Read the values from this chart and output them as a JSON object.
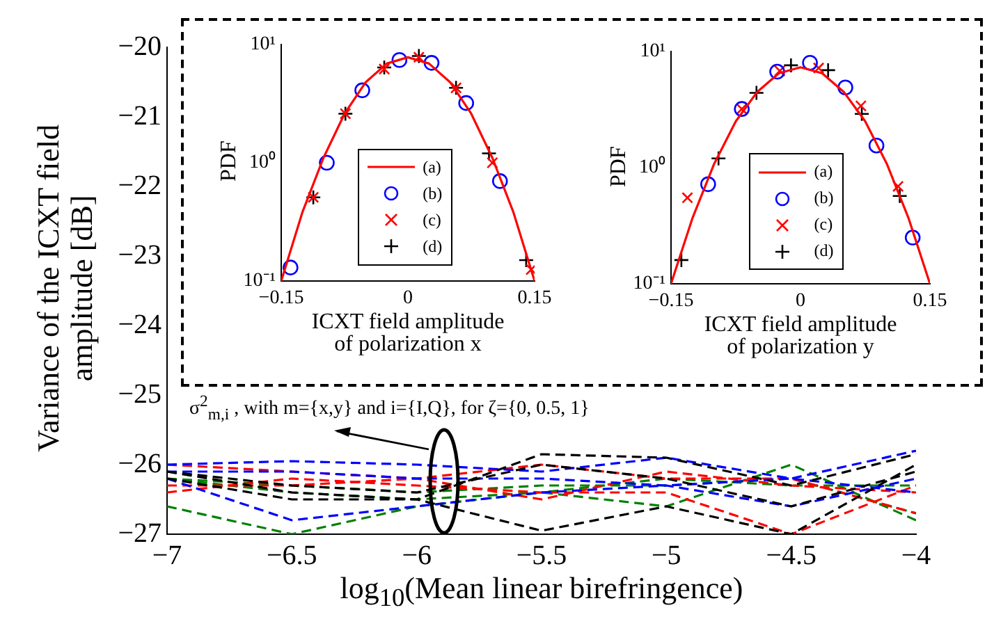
{
  "chart_data": [
    {
      "type": "line",
      "xlabel": "log$_{10}$(Mean linear birefringence)",
      "ylabel": "Variance of the ICXT field amplitude [dB]",
      "x": [
        -7,
        -6.5,
        -6,
        -5.5,
        -5,
        -4.5,
        -4
      ],
      "xlim": [
        -7,
        -4
      ],
      "xticks": [
        -7,
        -6.5,
        -6,
        -5.5,
        -5,
        -4.5,
        -4
      ],
      "ylim": [
        -27,
        -20
      ],
      "yticks": [
        -27,
        -26,
        -25,
        -24,
        -23,
        -22,
        -21,
        -20
      ],
      "legend": false,
      "marker": "none",
      "line_style": "dashed",
      "annotations": [
        "σ$^{2}$$_{m,i}$ , with m={x,y} and i={I,Q}, for ζ={0, 0.5, 1}"
      ],
      "series": [
        {
          "color": "#000000",
          "values": [
            -26.1,
            -26.4,
            -26.5,
            -25.85,
            -25.9,
            -26.3,
            -25.85
          ]
        },
        {
          "color": "#000000",
          "values": [
            -26.2,
            -26.5,
            -26.5,
            -26.95,
            -26.6,
            -27.0,
            -26.0
          ]
        },
        {
          "color": "#000000",
          "values": [
            -26.1,
            -26.3,
            -26.4,
            -26.0,
            -26.2,
            -26.6,
            -26.1
          ]
        },
        {
          "color": "#0000ff",
          "values": [
            -26.0,
            -25.95,
            -26.0,
            -26.1,
            -25.9,
            -26.2,
            -25.8
          ]
        },
        {
          "color": "#0000ff",
          "values": [
            -26.2,
            -26.8,
            -26.6,
            -26.4,
            -26.3,
            -26.6,
            -26.2
          ]
        },
        {
          "color": "#0000ff",
          "values": [
            -26.1,
            -26.1,
            -26.2,
            -26.2,
            -26.3,
            -26.2,
            -26.4
          ]
        },
        {
          "color": "#ff0000",
          "values": [
            -26.0,
            -26.1,
            -26.2,
            -26.0,
            -26.2,
            -26.2,
            -26.7
          ]
        },
        {
          "color": "#ff0000",
          "values": [
            -26.4,
            -26.2,
            -26.3,
            -26.4,
            -26.4,
            -27.0,
            -26.3
          ]
        },
        {
          "color": "#ff0000",
          "values": [
            -26.3,
            -26.3,
            -26.2,
            -26.5,
            -26.1,
            -26.3,
            -26.4
          ]
        },
        {
          "color": "#008000",
          "values": [
            -26.6,
            -27.0,
            -26.6,
            -26.4,
            -26.6,
            -26.0,
            -26.8
          ]
        },
        {
          "color": "#008000",
          "values": [
            -26.2,
            -26.3,
            -26.4,
            -26.3,
            -26.3,
            -26.2,
            -26.7
          ]
        },
        {
          "color": "#008000",
          "values": [
            -26.2,
            -26.4,
            -26.5,
            -26.4,
            -26.2,
            -26.3,
            -26.3
          ]
        }
      ]
    },
    {
      "type": "scatter",
      "xlabel": "ICXT field amplitude\nof polarization x",
      "ylabel": "PDF",
      "log": "y",
      "legend": "right",
      "xlim": [
        -0.15,
        0.15
      ],
      "xticks": [
        -0.15,
        0,
        0.15
      ],
      "ylim": [
        0.1,
        10
      ],
      "yticks": [
        {
          "value": 0.1,
          "label": "10⁻¹"
        },
        {
          "value": 1,
          "label": "10⁰"
        },
        {
          "value": 10,
          "label": "10¹"
        }
      ],
      "series": [
        {
          "name": "(a)",
          "type": "line",
          "color": "#ff0000",
          "marker": "none",
          "x": [
            -0.15,
            -0.125,
            -0.1,
            -0.075,
            -0.05,
            -0.025,
            0,
            0.025,
            0.05,
            0.075,
            0.1,
            0.125,
            0.15
          ],
          "values": [
            0.1,
            0.38,
            1.1,
            2.6,
            4.8,
            6.9,
            7.8,
            6.9,
            4.8,
            2.6,
            1.1,
            0.38,
            0.1
          ]
        },
        {
          "name": "(b)",
          "type": "scatter",
          "color": "#0000ff",
          "marker": "circle",
          "x": [
            -0.139,
            -0.096,
            -0.054,
            -0.01,
            0.028,
            0.069,
            0.109
          ],
          "values": [
            0.13,
            1.0,
            4.1,
            7.4,
            7.0,
            3.2,
            0.7
          ]
        },
        {
          "name": "(c)",
          "type": "scatter",
          "color": "#ff0000",
          "marker": "x",
          "x": [
            -0.112,
            -0.074,
            -0.028,
            0.013,
            0.057,
            0.1,
            0.146
          ],
          "values": [
            0.51,
            2.6,
            6.2,
            7.8,
            4.3,
            1.0,
            0.125
          ]
        },
        {
          "name": "(d)",
          "type": "scatter",
          "color": "#000000",
          "marker": "cross",
          "x": [
            -0.112,
            -0.074,
            -0.028,
            0.013,
            0.057,
            0.096,
            0.14
          ],
          "values": [
            0.51,
            2.6,
            6.4,
            8.0,
            4.3,
            1.2,
            0.15
          ]
        }
      ]
    },
    {
      "type": "scatter",
      "xlabel": "ICXT field amplitude\nof polarization y",
      "ylabel": "PDF",
      "log": "y",
      "legend": "right",
      "xlim": [
        -0.15,
        0.15
      ],
      "xticks": [
        -0.15,
        0,
        0.15
      ],
      "ylim": [
        0.1,
        10
      ],
      "yticks": [
        {
          "value": 0.1,
          "label": "10⁻¹"
        },
        {
          "value": 1,
          "label": "10⁰"
        },
        {
          "value": 10,
          "label": "10¹"
        }
      ],
      "series": [
        {
          "name": "(a)",
          "type": "line",
          "color": "#ff0000",
          "marker": "none",
          "x": [
            -0.15,
            -0.125,
            -0.1,
            -0.075,
            -0.05,
            -0.025,
            0,
            0.025,
            0.05,
            0.075,
            0.1,
            0.125,
            0.15
          ],
          "values": [
            0.1,
            0.37,
            1.08,
            2.5,
            4.5,
            6.5,
            7.3,
            6.5,
            4.5,
            2.5,
            1.08,
            0.37,
            0.1
          ]
        },
        {
          "name": "(b)",
          "type": "scatter",
          "color": "#0000ff",
          "marker": "circle",
          "x": [
            -0.107,
            -0.068,
            -0.027,
            0.011,
            0.052,
            0.088,
            0.13
          ],
          "values": [
            0.72,
            3.2,
            6.7,
            8.0,
            4.9,
            1.55,
            0.25
          ]
        },
        {
          "name": "(c)",
          "type": "scatter",
          "color": "#ff0000",
          "marker": "x",
          "x": [
            -0.131,
            -0.068,
            -0.024,
            0.021,
            0.07,
            0.113
          ],
          "values": [
            0.55,
            3.2,
            6.8,
            7.2,
            3.4,
            0.69
          ]
        },
        {
          "name": "(d)",
          "type": "scatter",
          "color": "#000000",
          "marker": "cross",
          "x": [
            -0.138,
            -0.095,
            -0.051,
            -0.011,
            0.032,
            0.071,
            0.115
          ],
          "values": [
            0.16,
            1.2,
            4.4,
            7.6,
            6.9,
            2.9,
            0.57
          ]
        }
      ]
    }
  ]
}
